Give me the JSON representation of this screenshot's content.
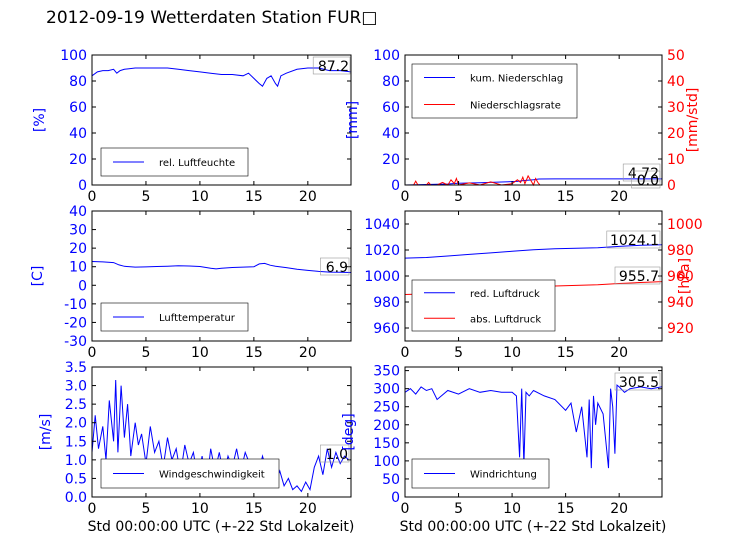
{
  "figure": {
    "title": "2012-09-19 Wetterdaten Station FUR□",
    "xlabel": "Std 00:00:00 UTC (+-22 Std Lokalzeit)"
  },
  "colors": {
    "primary": "#0000ff",
    "secondary": "#ff0000",
    "axis": "#000000"
  },
  "chart_data": [
    {
      "id": "humidity",
      "type": "line",
      "xlim": [
        0,
        24
      ],
      "xticks": [
        0,
        5,
        10,
        15,
        20
      ],
      "ylim": [
        0,
        100
      ],
      "yticks": [
        0,
        20,
        40,
        60,
        80,
        100
      ],
      "ylabel": "[%]",
      "annotation": "87.2",
      "legend": {
        "placement": "lower-left"
      },
      "series": [
        {
          "name": "rel. Luftfeuchte",
          "axis": "left",
          "color": "#0000ff",
          "x": [
            0,
            0.5,
            1,
            1.5,
            2,
            2.3,
            2.6,
            3,
            4,
            5,
            6,
            7,
            8,
            9,
            10,
            11,
            12,
            13,
            14,
            14.5,
            15,
            15.5,
            15.8,
            16.2,
            16.6,
            17,
            17.2,
            17.5,
            18,
            19,
            20,
            21,
            22,
            23,
            24
          ],
          "y": [
            84,
            87,
            88,
            88,
            89,
            86,
            88,
            89,
            90,
            90,
            90,
            90,
            89,
            88,
            87,
            86,
            85,
            85,
            84,
            86,
            82,
            78,
            76,
            82,
            84,
            78,
            76,
            84,
            86,
            89,
            90,
            90,
            88,
            88,
            87
          ]
        }
      ]
    },
    {
      "id": "precip",
      "type": "line",
      "xlim": [
        0,
        24
      ],
      "xticks": [
        0,
        5,
        10,
        15,
        20
      ],
      "ylim": [
        0,
        100
      ],
      "yticks": [
        0,
        20,
        40,
        60,
        80,
        100
      ],
      "ylabel": "[mm]",
      "y2lim": [
        0,
        50
      ],
      "y2ticks": [
        0,
        10,
        20,
        30,
        40,
        50
      ],
      "y2label": "[mm/std]",
      "annotations": [
        "4.72",
        "0.0"
      ],
      "legend": {
        "placement": "upper-left"
      },
      "series": [
        {
          "name": "kum. Niederschlag",
          "axis": "left",
          "color": "#0000ff",
          "x": [
            0,
            2,
            4,
            5,
            7,
            9,
            10.5,
            11,
            12,
            12.5,
            14,
            18,
            22,
            24
          ],
          "y": [
            0,
            0.4,
            0.8,
            1.3,
            1.8,
            2.3,
            2.8,
            3.4,
            4,
            4.6,
            4.7,
            4.72,
            4.72,
            4.72
          ]
        },
        {
          "name": "Niederschlagsrate",
          "axis": "right",
          "color": "#ff0000",
          "x": [
            0,
            0.8,
            1,
            1.2,
            2,
            2.2,
            2.4,
            3,
            3.5,
            4,
            4.3,
            4.6,
            4.8,
            5,
            6,
            7,
            8,
            9,
            10,
            10.5,
            10.8,
            11,
            11.2,
            11.5,
            12,
            12.2,
            12.4,
            12.6,
            13,
            24
          ],
          "y": [
            0,
            0,
            1.5,
            0,
            0,
            1,
            0,
            0,
            1,
            0,
            2,
            0.5,
            2.5,
            0,
            0.8,
            0,
            1.2,
            0,
            0.5,
            2,
            1,
            3,
            0.5,
            3.5,
            0,
            2.5,
            1,
            0,
            0,
            0
          ]
        }
      ]
    },
    {
      "id": "temp",
      "type": "line",
      "xlim": [
        0,
        24
      ],
      "xticks": [
        0,
        5,
        10,
        15,
        20
      ],
      "ylim": [
        -30,
        40
      ],
      "yticks": [
        -30,
        -20,
        -10,
        0,
        10,
        20,
        30,
        40
      ],
      "ylabel": "[C]",
      "annotation": "6.9",
      "legend": {
        "placement": "lower-left"
      },
      "series": [
        {
          "name": "Lufttemperatur",
          "axis": "left",
          "color": "#0000ff",
          "x": [
            0,
            1,
            2,
            2.5,
            3,
            4,
            5,
            6,
            7,
            8,
            9,
            10,
            11,
            11.5,
            12,
            13,
            14,
            15,
            15.5,
            16,
            16.5,
            17,
            18,
            19,
            20,
            21,
            22,
            23,
            24
          ],
          "y": [
            12.8,
            12.6,
            12.2,
            11,
            10.2,
            9.8,
            9.9,
            10.1,
            10.3,
            10.5,
            10.4,
            10.1,
            9.2,
            8.8,
            9.2,
            9.6,
            9.8,
            10,
            11.5,
            11.8,
            10.8,
            10.3,
            9.5,
            8.6,
            8,
            7.5,
            7.1,
            7,
            6.9
          ]
        }
      ]
    },
    {
      "id": "pressure",
      "type": "line",
      "xlim": [
        0,
        24
      ],
      "xticks": [
        0,
        5,
        10,
        15,
        20
      ],
      "ylim": [
        950,
        1050
      ],
      "yticks": [
        960,
        980,
        1000,
        1020,
        1040
      ],
      "ylabel": "",
      "y2lim": [
        910,
        1010
      ],
      "y2ticks": [
        920,
        940,
        960,
        980,
        1000
      ],
      "y2label": "[hPa]",
      "annotations": [
        "1024.1",
        "955.7"
      ],
      "legend": {
        "placement": "lower-left"
      },
      "series": [
        {
          "name": "red. Luftdruck",
          "axis": "left",
          "color": "#0000ff",
          "x": [
            0,
            2,
            4,
            6,
            8,
            10,
            12,
            14,
            16,
            18,
            20,
            22,
            24
          ],
          "y": [
            1013.8,
            1014.2,
            1015.4,
            1016.6,
            1017.8,
            1019,
            1020.2,
            1021,
            1021.4,
            1021.8,
            1022.8,
            1023.6,
            1024.1
          ]
        },
        {
          "name": "abs. Luftdruck",
          "axis": "right",
          "color": "#ff0000",
          "x": [
            0,
            2,
            4,
            6,
            8,
            10,
            12,
            14,
            16,
            18,
            20,
            22,
            24
          ],
          "y": [
            945.8,
            946.2,
            947.2,
            948.3,
            949.4,
            950.5,
            951.5,
            952.3,
            952.8,
            953.3,
            954.2,
            955,
            955.7
          ]
        }
      ]
    },
    {
      "id": "wind-speed",
      "type": "line",
      "xlim": [
        0,
        24
      ],
      "xticks": [
        0,
        5,
        10,
        15,
        20
      ],
      "ylim": [
        0,
        3.5
      ],
      "yticks": [
        0.0,
        0.5,
        1.0,
        1.5,
        2.0,
        2.5,
        3.0,
        3.5
      ],
      "ylabel": "[m/s]",
      "annotation": "1.0",
      "legend": {
        "placement": "lower-left"
      },
      "series": [
        {
          "name": "Windgeschwindigkeit",
          "axis": "left",
          "color": "#0000ff",
          "x": [
            0,
            0.3,
            0.6,
            1,
            1.3,
            1.6,
            2,
            2.2,
            2.4,
            2.7,
            3,
            3.3,
            3.6,
            4,
            4.3,
            4.6,
            5,
            5.4,
            5.8,
            6.2,
            6.6,
            7,
            7.4,
            7.8,
            8.2,
            8.6,
            9,
            9.4,
            9.8,
            10.2,
            10.6,
            11,
            11.4,
            11.8,
            12.2,
            12.6,
            13,
            13.4,
            13.8,
            14.2,
            14.6,
            15,
            15.4,
            15.8,
            16.2,
            16.6,
            17,
            17.4,
            17.8,
            18.2,
            18.6,
            19,
            19.4,
            19.8,
            20.2,
            20.6,
            21,
            21.4,
            21.8,
            22.2,
            22.6,
            23,
            23.4,
            23.8
          ],
          "y": [
            1.2,
            2.2,
            1.3,
            1.9,
            1.0,
            2.6,
            1.5,
            3.15,
            1.2,
            3.0,
            1.6,
            2.5,
            1.1,
            2.0,
            1.4,
            1.7,
            0.9,
            1.9,
            1.2,
            1.5,
            0.8,
            1.6,
            1.0,
            1.3,
            0.6,
            1.4,
            0.9,
            1.2,
            0.5,
            1.1,
            0.3,
            1.3,
            0.7,
            1.2,
            0.6,
            1.1,
            0.8,
            1.3,
            0.7,
            1.2,
            0.9,
            1.0,
            0.6,
            1.1,
            0.7,
            0.8,
            0.4,
            0.7,
            0.3,
            0.5,
            0.2,
            0.3,
            0.15,
            0.4,
            0.2,
            0.8,
            1.1,
            0.6,
            1.3,
            0.8,
            1.2,
            0.9,
            1.1,
            1.0
          ]
        }
      ]
    },
    {
      "id": "wind-dir",
      "type": "line",
      "xlim": [
        0,
        24
      ],
      "xticks": [
        0,
        5,
        10,
        15,
        20
      ],
      "ylim": [
        0,
        360
      ],
      "yticks": [
        0,
        50,
        100,
        150,
        200,
        250,
        300,
        350
      ],
      "ylabel": "[deg]",
      "annotation": "305.5",
      "legend": {
        "placement": "lower-left"
      },
      "series": [
        {
          "name": "Windrichtung",
          "axis": "left",
          "color": "#0000ff",
          "x": [
            0,
            0.5,
            1,
            1.5,
            2,
            2.5,
            3,
            4,
            5,
            6,
            7,
            8,
            9,
            10,
            10.4,
            10.7,
            10.9,
            11.1,
            11.3,
            11.6,
            12,
            13,
            14,
            15,
            15.5,
            16,
            16.5,
            17,
            17.2,
            17.4,
            17.6,
            17.8,
            18,
            18.5,
            19,
            19.2,
            19.4,
            19.6,
            19.8,
            20,
            20.5,
            21,
            22,
            23,
            24
          ],
          "y": [
            290,
            300,
            285,
            305,
            295,
            300,
            270,
            295,
            285,
            300,
            290,
            295,
            290,
            290,
            280,
            110,
            300,
            90,
            290,
            280,
            295,
            280,
            270,
            240,
            260,
            180,
            250,
            110,
            270,
            80,
            280,
            200,
            260,
            230,
            80,
            300,
            250,
            120,
            310,
            305,
            290,
            300,
            305,
            300,
            305.5
          ]
        }
      ]
    }
  ]
}
